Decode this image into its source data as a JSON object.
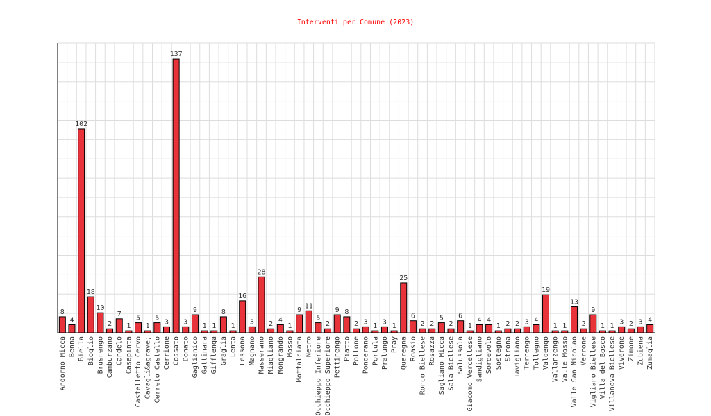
{
  "chart_data": {
    "type": "bar",
    "title": "Interventi per Comune (2023)",
    "xlabel": "",
    "ylabel": "",
    "ylim": [
      0,
      145
    ],
    "grid": true,
    "legend": "none",
    "colors": {
      "title": "#ff0000",
      "bar_fill": "#e8333a",
      "bar_stroke": "#000000",
      "grid": "#dddddd",
      "axis": "#000000",
      "text": "#333333"
    },
    "categories": [
      "Andorno Micca",
      "Benna",
      "Biella",
      "Bioglio",
      "Brusnengo",
      "Camburzano",
      "Candelo",
      "Casapinta",
      "Castelletto Cervo",
      "Cavagli&agrave;",
      "Cerreto Castello",
      "Cerrione",
      "Cossato",
      "Donato",
      "Gaglianico",
      "Gattinara",
      "Gifflenga",
      "Graglia",
      "Lenta",
      "Lessona",
      "Magnano",
      "Masserano",
      "Miagliano",
      "Mongrando",
      "Mosso",
      "Mottalciata",
      "Netro",
      "Occhieppo Inferiore",
      "Occhieppo Superiore",
      "Pettinengo",
      "Piatto",
      "Pollone",
      "Ponderano",
      "Portula",
      "Pralungo",
      "Pray",
      "Quaregna",
      "Roasio",
      "Ronco Biellese",
      "Rosazza",
      "Sagliano Micca",
      "Sala Biellese",
      "Salussola",
      "Giacomo Vercellese",
      "Sandigliano",
      "Sordevolo",
      "Sostegno",
      "Strona",
      "Tavigliano",
      "Ternengo",
      "Tollegno",
      "Valdengo",
      "Vallanzengo",
      "Valle Mosso",
      "Valle San Nicolao",
      "Verrone",
      "Vigliano Biellese",
      "Villa del Bosco",
      "Villanova Biellese",
      "Viverone",
      "Zimone",
      "Zubiena",
      "Zumaglia"
    ],
    "values": [
      8,
      4,
      102,
      18,
      10,
      2,
      7,
      1,
      5,
      1,
      5,
      3,
      137,
      3,
      9,
      1,
      1,
      8,
      1,
      16,
      3,
      28,
      2,
      4,
      1,
      9,
      11,
      5,
      2,
      9,
      8,
      2,
      3,
      1,
      3,
      1,
      25,
      6,
      2,
      2,
      5,
      2,
      6,
      1,
      4,
      4,
      1,
      2,
      2,
      3,
      4,
      19,
      1,
      1,
      13,
      2,
      9,
      1,
      1,
      3,
      2,
      3,
      4
    ]
  }
}
